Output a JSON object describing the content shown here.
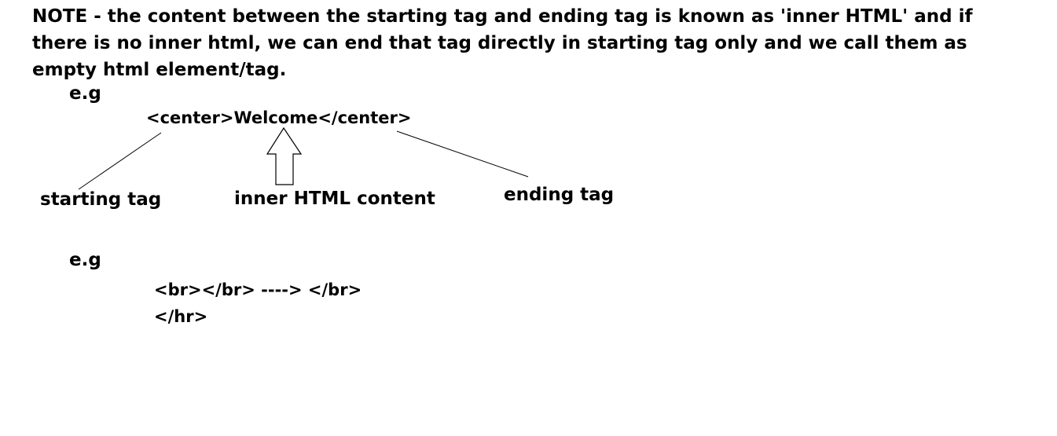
{
  "note": {
    "line1": "NOTE - the content between the starting tag and ending tag is known as 'inner HTML' and if",
    "line2": "there is no inner html, we can end that tag directly in starting tag only and we call them as",
    "line3": "empty html element/tag."
  },
  "example1": {
    "label": "e.g",
    "code": "<center>Welcome</center>",
    "annotations": {
      "starting_tag": "starting tag",
      "inner_html": "inner HTML content",
      "ending_tag": "ending tag"
    }
  },
  "example2": {
    "label": "e.g",
    "line1": "<br></br> ----> </br>",
    "line2": "</hr>"
  }
}
